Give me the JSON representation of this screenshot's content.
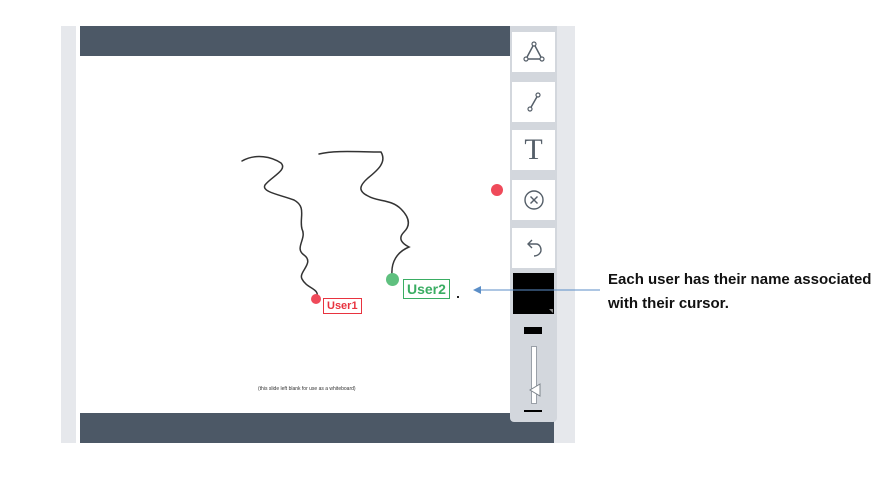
{
  "whiteboard": {
    "footnote": "(this slide left blank for use as a whiteboard)"
  },
  "toolbar": {
    "tools": [
      {
        "name": "polygon-tool",
        "icon": "triangle-icon"
      },
      {
        "name": "line-tool",
        "icon": "line-icon"
      },
      {
        "name": "text-tool",
        "icon": "text-icon",
        "label": "T"
      },
      {
        "name": "clear-tool",
        "icon": "close-circle-icon"
      },
      {
        "name": "undo-tool",
        "icon": "undo-icon"
      }
    ],
    "color": "#000000"
  },
  "users": [
    {
      "name": "User1",
      "color": "#e8333f"
    },
    {
      "name": "User2",
      "color": "#3aad63"
    }
  ],
  "annotation": {
    "text": "Each user has their name associated with their cursor."
  }
}
